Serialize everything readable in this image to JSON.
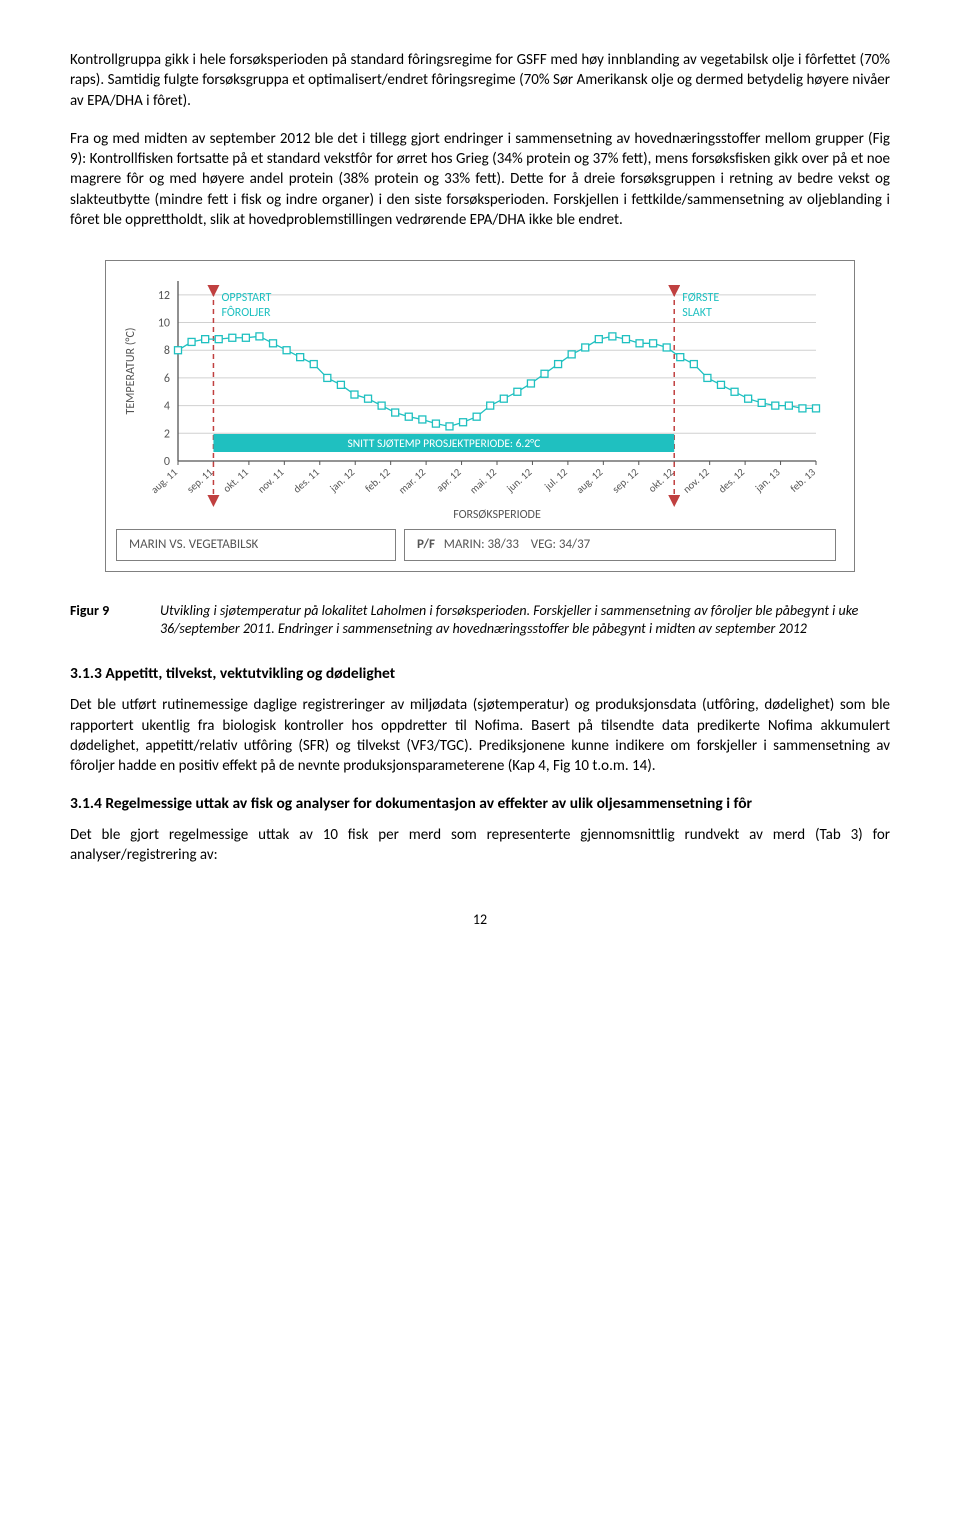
{
  "para1": "Kontrollgruppa gikk i hele forsøksperioden på standard fôringsregime for GSFF med høy innblanding av vegetabilsk olje i fôrfettet (70% raps). Samtidig fulgte forsøksgruppa et optimalisert/endret fôringsregime (70% Sør Amerikansk olje og dermed betydelig høyere nivåer av EPA/DHA i fôret).",
  "para2": "Fra og med midten av september 2012 ble det i tillegg gjort endringer i sammensetning av hovednæringsstoffer mellom grupper (Fig 9): Kontrollfisken fortsatte på et standard vekstfôr for ørret hos Grieg (34% protein og 37% fett), mens forsøksfisken gikk over på et noe magrere fôr og med høyere andel protein (38% protein og 33% fett). Dette for å dreie forsøksgruppen i retning av bedre vekst og slakteutbytte (mindre fett i fisk og indre organer) i den siste forsøksperioden. Forskjellen i fettkilde/sammensetning av oljeblanding i fôret ble opprettholdt, slik at hovedproblemstillingen vedrørende EPA/DHA ikke ble endret.",
  "chart": {
    "y_label": "TEMPERATUR (°C)",
    "callout1": "OPPSTART\nFÔROLJER",
    "callout2": "FØRSTE\nSLAKT",
    "banner": "SNITT SJØTEMP PROSJEKTPERIODE: 6.2°C",
    "x_label": "FORSØKSPERIODE",
    "y_ticks": [
      "0",
      "2",
      "4",
      "6",
      "8",
      "10",
      "12"
    ],
    "x_ticks": [
      "aug. 11",
      "sep. 11",
      "okt. 11",
      "nov. 11",
      "des. 11",
      "jan. 12",
      "feb. 12",
      "mar. 12",
      "apr. 12",
      "mai. 12",
      "jun. 12",
      "jul. 12",
      "aug. 12",
      "sep. 12",
      "okt. 12",
      "nov. 12",
      "des. 12",
      "jan. 13",
      "feb. 13"
    ],
    "teal": "#1fc0c0",
    "grid_color": "#d0d0d0",
    "dash_color": "#c04040",
    "series": [
      8.0,
      8.6,
      8.8,
      8.8,
      8.9,
      8.9,
      9.0,
      8.5,
      8.0,
      7.5,
      7.0,
      6.0,
      5.5,
      4.8,
      4.5,
      4.0,
      3.5,
      3.2,
      3.0,
      2.7,
      2.5,
      2.8,
      3.2,
      4.0,
      4.5,
      5.0,
      5.6,
      6.3,
      7.0,
      7.7,
      8.2,
      8.8,
      9.0,
      8.8,
      8.5,
      8.5,
      8.2,
      7.5,
      7.0,
      6.0,
      5.5,
      5.0,
      4.5,
      4.2,
      4.0,
      4.0,
      3.8,
      3.8
    ]
  },
  "box_left": "MARIN VS. VEGETABILSK",
  "box_right_label": "P/F",
  "box_right_m": "MARIN: 38/33",
  "box_right_v": "VEG: 34/37",
  "fig_label": "Figur 9",
  "fig_caption": "Utvikling i sjøtemperatur på lokalitet Laholmen i forsøksperioden. Forskjeller i sammensetning av fôroljer ble påbegynt i uke 36/september 2011. Endringer i sammensetning av hovednæringsstoffer ble påbegynt i midten av september 2012",
  "sec313_title": "3.1.3    Appetitt, tilvekst, vektutvikling og dødelighet",
  "sec313_body": "Det ble utført rutinemessige daglige registreringer av miljødata (sjøtemperatur) og produksjonsdata (utfôring, dødelighet) som ble rapportert ukentlig fra biologisk kontroller hos oppdretter til Nofima. Basert på tilsendte data predikerte Nofima akkumulert dødelighet, appetitt/relativ utfôring (SFR) og tilvekst (VF3/TGC). Prediksjonene kunne indikere om forskjeller i sammensetning av fôroljer hadde en positiv effekt på de nevnte produksjonsparameterene (Kap 4, Fig 10 t.o.m. 14).",
  "sec314_title": "3.1.4    Regelmessige uttak av fisk og analyser for dokumentasjon av effekter av ulik oljesammensetning i fôr",
  "sec314_body": "Det ble gjort regelmessige uttak av 10 fisk per merd som representerte gjennomsnittlig rundvekt av merd (Tab 3) for analyser/registrering av:",
  "page_num": "12"
}
